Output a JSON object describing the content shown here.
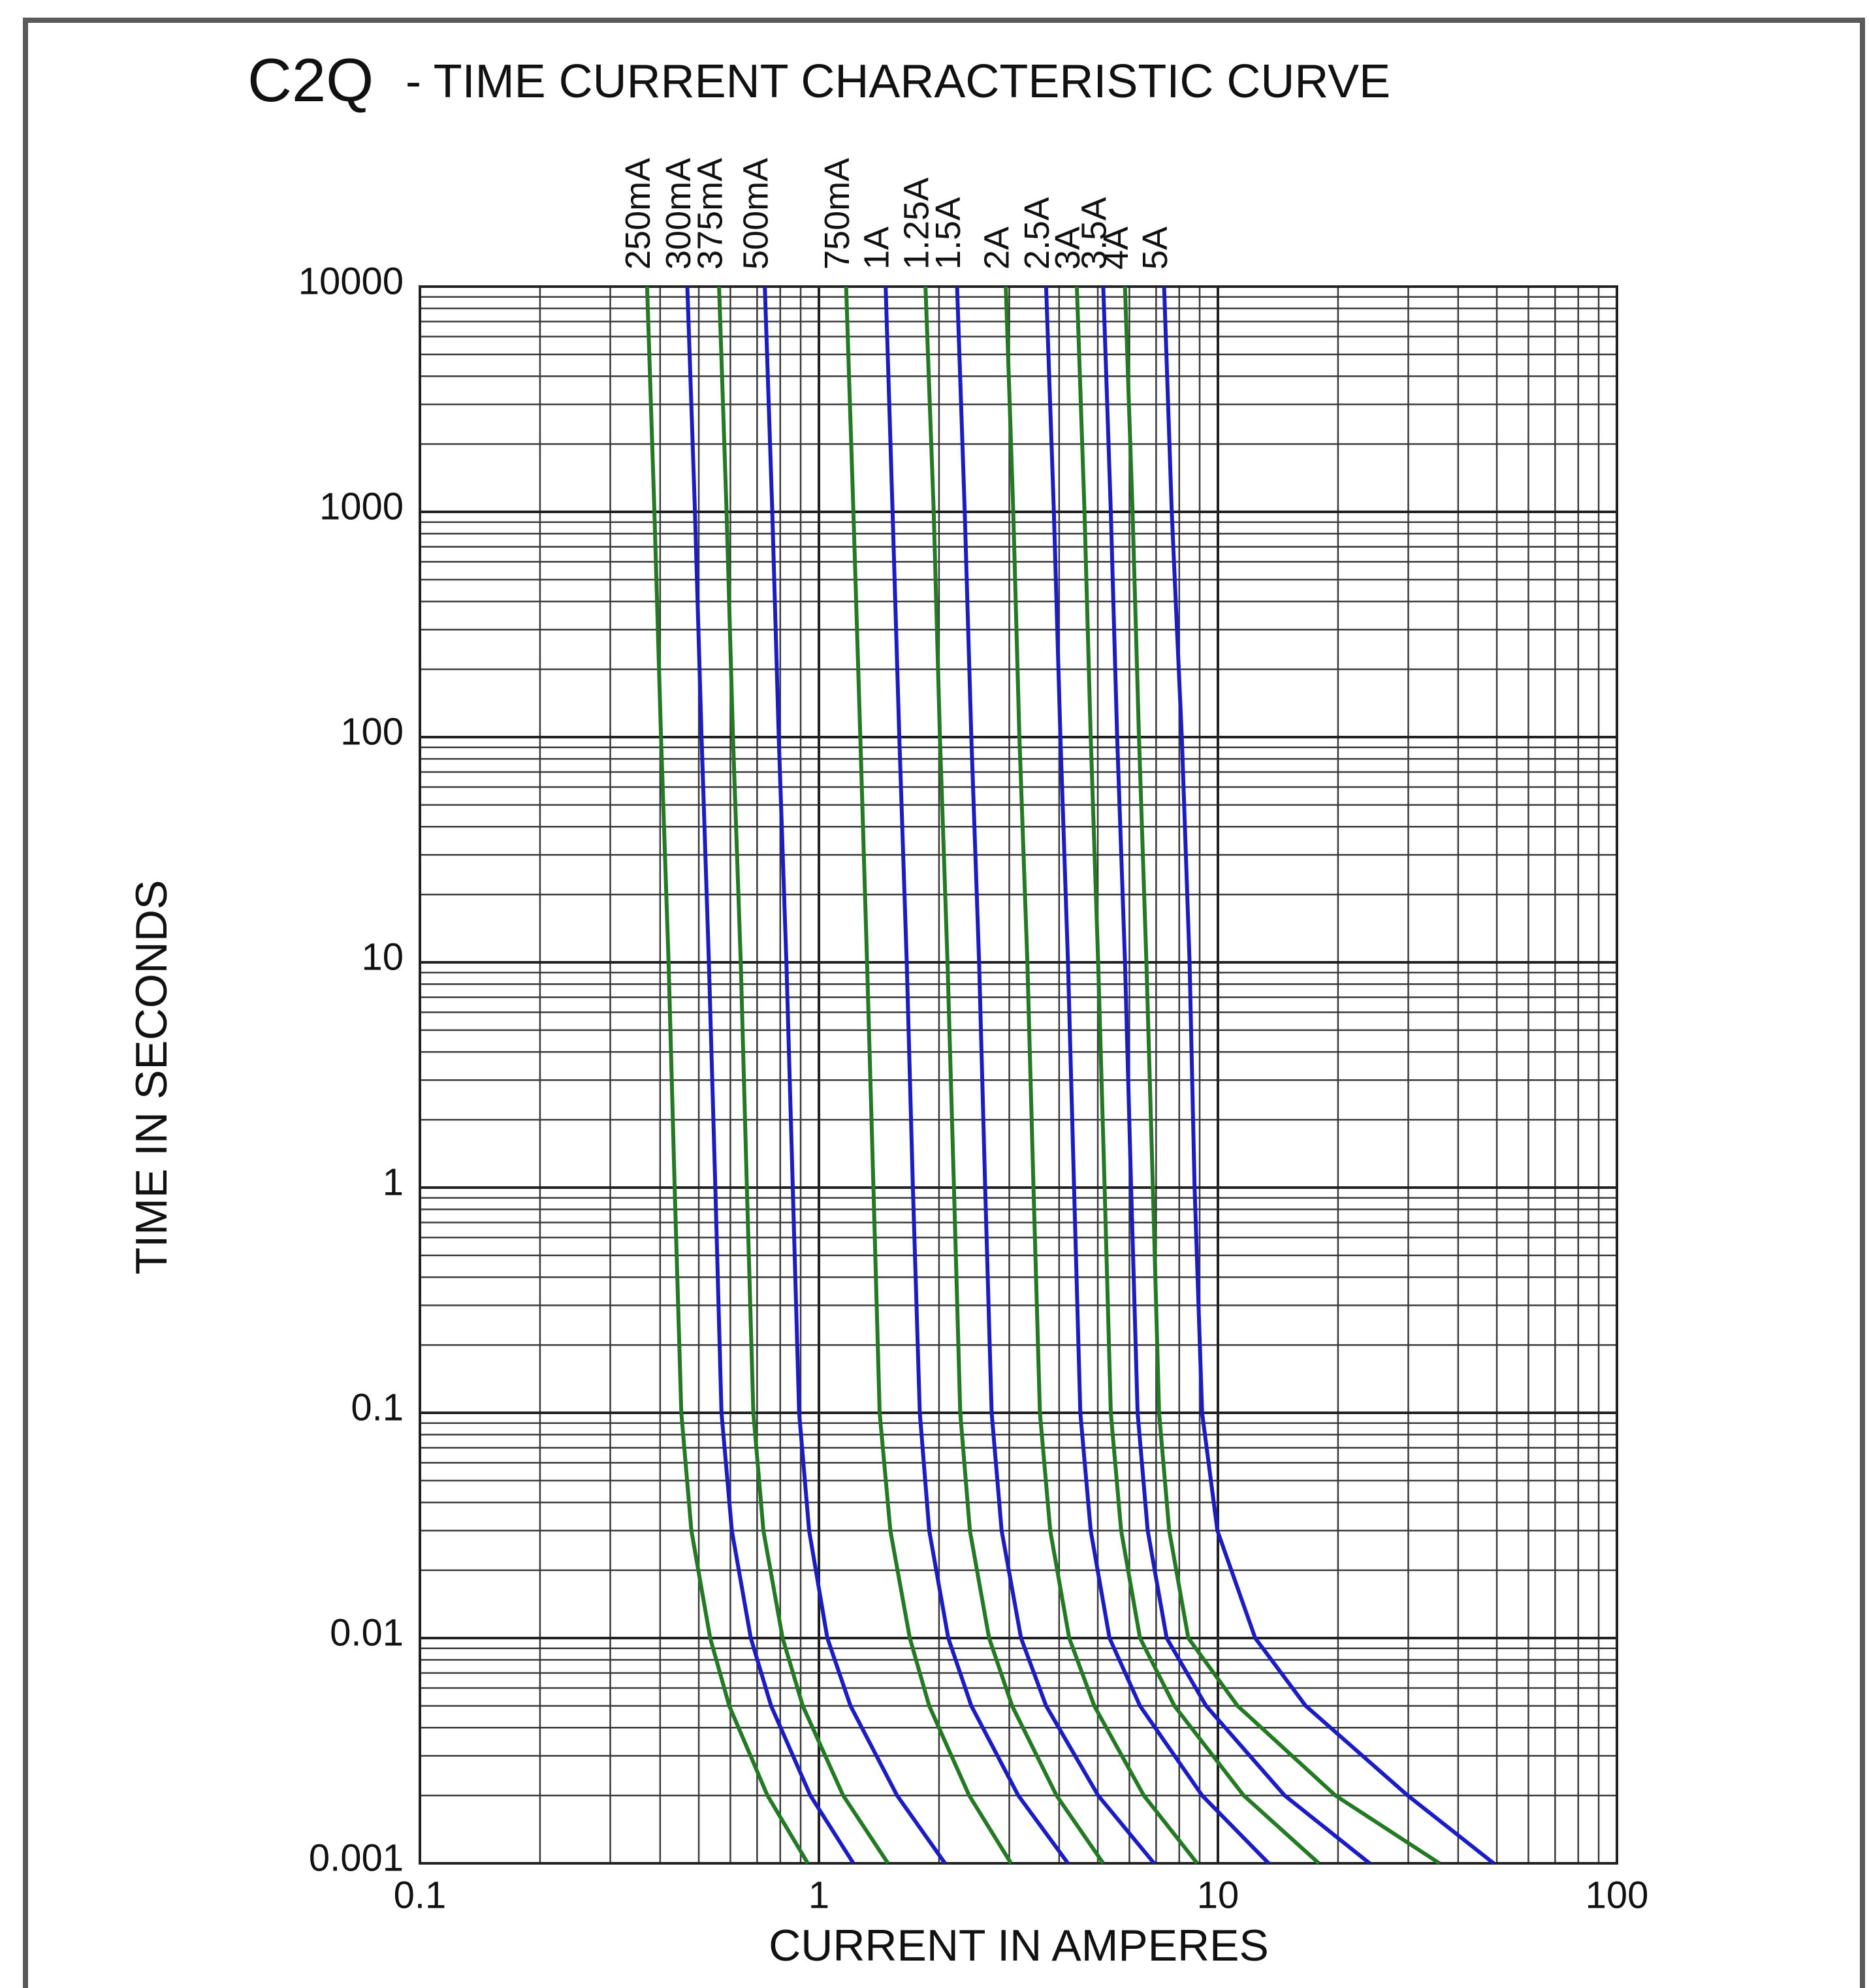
{
  "chart_data": {
    "type": "line",
    "title": "C2Q",
    "subtitle": "- TIME CURRENT CHARACTERISTIC CURVE",
    "x_label": "CURRENT IN AMPERES",
    "y_label": "TIME IN SECONDS",
    "log_x": true,
    "log_y": true,
    "grid": true,
    "xlim": [
      0.1,
      100
    ],
    "xticks": [
      0.1,
      1,
      10,
      100
    ],
    "ylim": [
      0.001,
      10000
    ],
    "yticks": [
      10000,
      1000,
      100,
      10,
      1,
      0.1,
      0.01,
      0.001
    ],
    "series": [
      {
        "name": "250mA",
        "color": "#237a23",
        "x": [
          0.371,
          0.387,
          0.402,
          0.42,
          0.435,
          0.452,
          0.479,
          0.534,
          0.596,
          0.743,
          0.938
        ],
        "values": [
          10000,
          1000,
          100,
          10,
          1,
          0.1,
          0.03,
          0.01,
          0.005,
          0.002,
          0.001
        ]
      },
      {
        "name": "300mA",
        "color": "#1c1cc4",
        "x": [
          0.468,
          0.489,
          0.508,
          0.53,
          0.55,
          0.57,
          0.605,
          0.675,
          0.759,
          0.952,
          1.22
        ],
        "values": [
          10000,
          1000,
          100,
          10,
          1,
          0.1,
          0.03,
          0.01,
          0.005,
          0.002,
          0.001
        ]
      },
      {
        "name": "375mA",
        "color": "#237a23",
        "x": [
          0.562,
          0.587,
          0.609,
          0.637,
          0.66,
          0.685,
          0.726,
          0.811,
          0.911,
          1.15,
          1.49
        ],
        "values": [
          10000,
          1000,
          100,
          10,
          1,
          0.1,
          0.03,
          0.01,
          0.005,
          0.002,
          0.001
        ]
      },
      {
        "name": "500mA",
        "color": "#1c1cc4",
        "x": [
          0.732,
          0.764,
          0.793,
          0.829,
          0.86,
          0.892,
          0.945,
          1.05,
          1.2,
          1.57,
          2.07
        ],
        "values": [
          10000,
          1000,
          100,
          10,
          1,
          0.1,
          0.03,
          0.01,
          0.005,
          0.002,
          0.001
        ]
      },
      {
        "name": "750mA",
        "color": "#237a23",
        "x": [
          1.17,
          1.22,
          1.27,
          1.32,
          1.37,
          1.42,
          1.51,
          1.69,
          1.89,
          2.38,
          3.03
        ],
        "values": [
          10000,
          1000,
          100,
          10,
          1,
          0.1,
          0.03,
          0.01,
          0.005,
          0.002,
          0.001
        ]
      },
      {
        "name": "1A",
        "color": "#1c1cc4",
        "x": [
          1.47,
          1.53,
          1.59,
          1.66,
          1.72,
          1.79,
          1.89,
          2.11,
          2.41,
          3.16,
          4.21
        ],
        "values": [
          10000,
          1000,
          100,
          10,
          1,
          0.1,
          0.03,
          0.01,
          0.005,
          0.002,
          0.001
        ]
      },
      {
        "name": "1.25A",
        "color": "#237a23",
        "x": [
          1.85,
          1.94,
          2.01,
          2.1,
          2.18,
          2.26,
          2.39,
          2.67,
          3.05,
          3.94,
          5.16
        ],
        "values": [
          10000,
          1000,
          100,
          10,
          1,
          0.1,
          0.03,
          0.01,
          0.005,
          0.002,
          0.001
        ]
      },
      {
        "name": "1.5A",
        "color": "#1c1cc4",
        "x": [
          2.22,
          2.32,
          2.41,
          2.52,
          2.61,
          2.71,
          2.87,
          3.21,
          3.71,
          5.01,
          6.92
        ],
        "values": [
          10000,
          1000,
          100,
          10,
          1,
          0.1,
          0.03,
          0.01,
          0.005,
          0.002,
          0.001
        ]
      },
      {
        "name": "2A",
        "color": "#237a23",
        "x": [
          2.94,
          3.07,
          3.18,
          3.33,
          3.45,
          3.58,
          3.8,
          4.24,
          4.9,
          6.52,
          8.87
        ],
        "values": [
          10000,
          1000,
          100,
          10,
          1,
          0.1,
          0.03,
          0.01,
          0.005,
          0.002,
          0.001
        ]
      },
      {
        "name": "2.5A",
        "color": "#1c1cc4",
        "x": [
          3.71,
          3.88,
          4.03,
          4.21,
          4.36,
          4.52,
          4.8,
          5.35,
          6.38,
          9.13,
          13.4
        ],
        "values": [
          10000,
          1000,
          100,
          10,
          1,
          0.1,
          0.03,
          0.01,
          0.005,
          0.002,
          0.001
        ]
      },
      {
        "name": "3A",
        "color": "#237a23",
        "x": [
          4.43,
          4.63,
          4.8,
          5.01,
          5.2,
          5.39,
          5.72,
          6.38,
          7.78,
          11.6,
          17.9
        ],
        "values": [
          10000,
          1000,
          100,
          10,
          1,
          0.1,
          0.03,
          0.01,
          0.005,
          0.002,
          0.001
        ]
      },
      {
        "name": "3.5A",
        "color": "#1c1cc4",
        "x": [
          5.16,
          5.39,
          5.59,
          5.85,
          6.06,
          6.29,
          6.67,
          7.44,
          9.34,
          14.7,
          24.0
        ],
        "values": [
          10000,
          1000,
          100,
          10,
          1,
          0.1,
          0.03,
          0.01,
          0.005,
          0.002,
          0.001
        ]
      },
      {
        "name": "4A",
        "color": "#237a23",
        "x": [
          5.85,
          6.11,
          6.34,
          6.62,
          6.87,
          7.12,
          7.55,
          8.43,
          11.2,
          19.7,
          35.9
        ],
        "values": [
          10000,
          1000,
          100,
          10,
          1,
          0.1,
          0.03,
          0.01,
          0.005,
          0.002,
          0.001
        ]
      },
      {
        "name": "5A",
        "color": "#1c1cc4",
        "x": [
          7.33,
          7.66,
          8.12,
          8.49,
          8.74,
          9.13,
          9.97,
          12.4,
          16.6,
          29.9,
          49.1
        ],
        "values": [
          10000,
          1000,
          100,
          10,
          1,
          0.1,
          0.03,
          0.01,
          0.005,
          0.002,
          0.001
        ]
      }
    ]
  }
}
